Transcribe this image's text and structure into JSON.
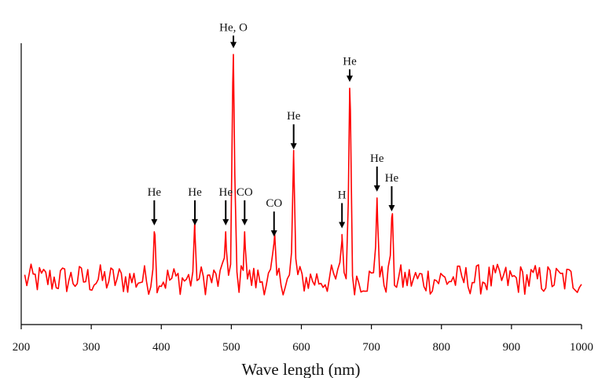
{
  "chart_data": {
    "type": "line",
    "title": "",
    "xlabel": "Wave length (nm)",
    "ylabel": "",
    "xlim": [
      200,
      1000
    ],
    "ylim": [
      0,
      100
    ],
    "xticks": [
      200,
      300,
      400,
      500,
      600,
      700,
      800,
      900,
      1000
    ],
    "grid": false,
    "legend": "none",
    "series": [
      {
        "color": "#ff0000",
        "baseline": 16,
        "peaks": [
          {
            "x": 390,
            "y": 33
          },
          {
            "x": 448,
            "y": 33
          },
          {
            "x": 492,
            "y": 33
          },
          {
            "x": 503,
            "y": 96
          },
          {
            "x": 519,
            "y": 33
          },
          {
            "x": 561,
            "y": 29
          },
          {
            "x": 589,
            "y": 60
          },
          {
            "x": 658,
            "y": 32
          },
          {
            "x": 669,
            "y": 84
          },
          {
            "x": 708,
            "y": 45
          },
          {
            "x": 729,
            "y": 38
          }
        ]
      }
    ],
    "annotations": [
      {
        "text": "He",
        "x": 390
      },
      {
        "text": "He",
        "x": 448
      },
      {
        "text": "He",
        "x": 492
      },
      {
        "text": "He, O",
        "x": 503
      },
      {
        "text": "CO",
        "x": 519
      },
      {
        "text": "CO",
        "x": 561
      },
      {
        "text": "He",
        "x": 589
      },
      {
        "text": "H",
        "x": 658
      },
      {
        "text": "He",
        "x": 669
      },
      {
        "text": "He",
        "x": 708
      },
      {
        "text": "He",
        "x": 729
      }
    ]
  }
}
